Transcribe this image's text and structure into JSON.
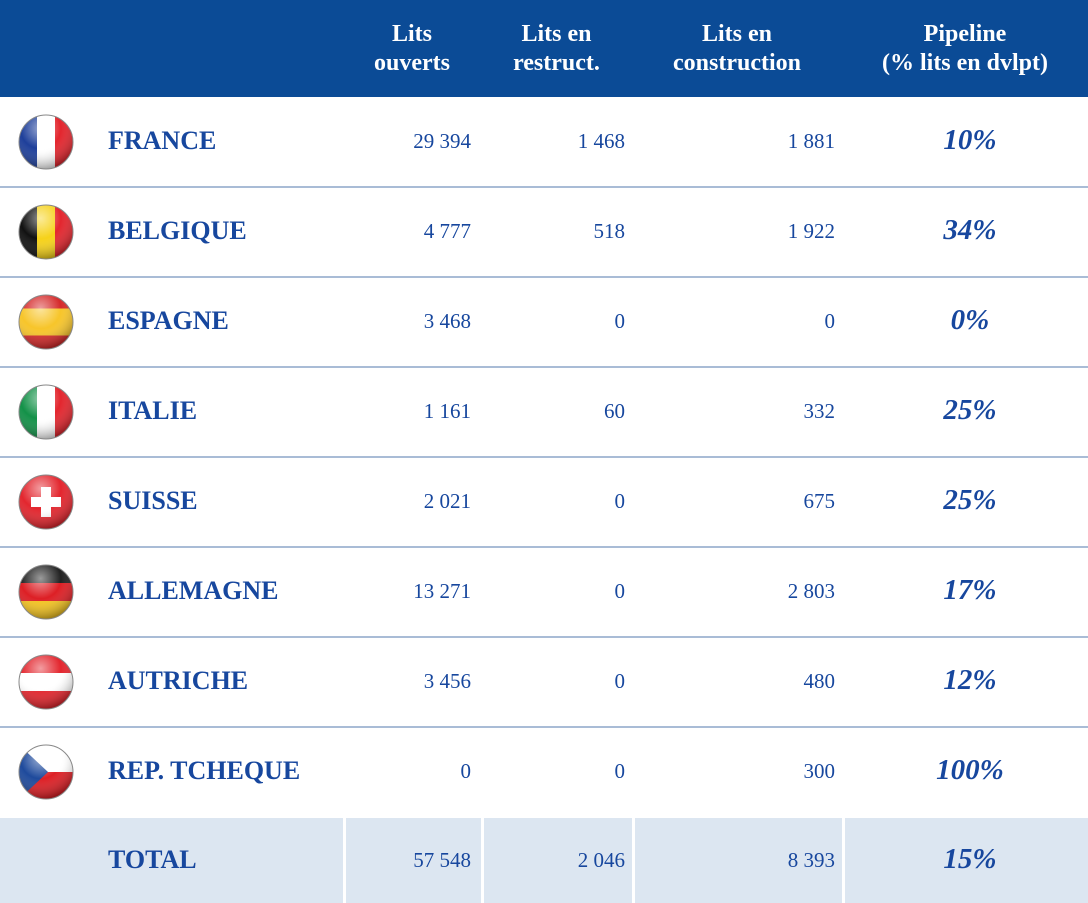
{
  "table": {
    "header": [
      [
        "Lits",
        "ouverts"
      ],
      [
        "Lits en",
        "restruct."
      ],
      [
        "Lits en",
        "construction"
      ],
      [
        "Pipeline",
        "(% lits en dvlpt)"
      ]
    ],
    "rows": [
      [
        "FRANCE",
        "29 394",
        "1 468",
        "1 881",
        "10%"
      ],
      [
        "BELGIQUE",
        "4 777",
        "518",
        "1 922",
        "34%"
      ],
      [
        "ESPAGNE",
        "3 468",
        "0",
        "0",
        "0%"
      ],
      [
        "ITALIE",
        "1 161",
        "60",
        "332",
        "25%"
      ],
      [
        "SUISSE",
        "2 021",
        "0",
        "675",
        "25%"
      ],
      [
        "ALLEMAGNE",
        "13 271",
        "0",
        "2 803",
        "17%"
      ],
      [
        "AUTRICHE",
        "3 456",
        "0",
        "480",
        "12%"
      ],
      [
        "REP. TCHEQUE",
        "0",
        "0",
        "300",
        "100%"
      ]
    ],
    "total": [
      "TOTAL",
      "57 548",
      "2 046",
      "8 393",
      "15%"
    ]
  }
}
